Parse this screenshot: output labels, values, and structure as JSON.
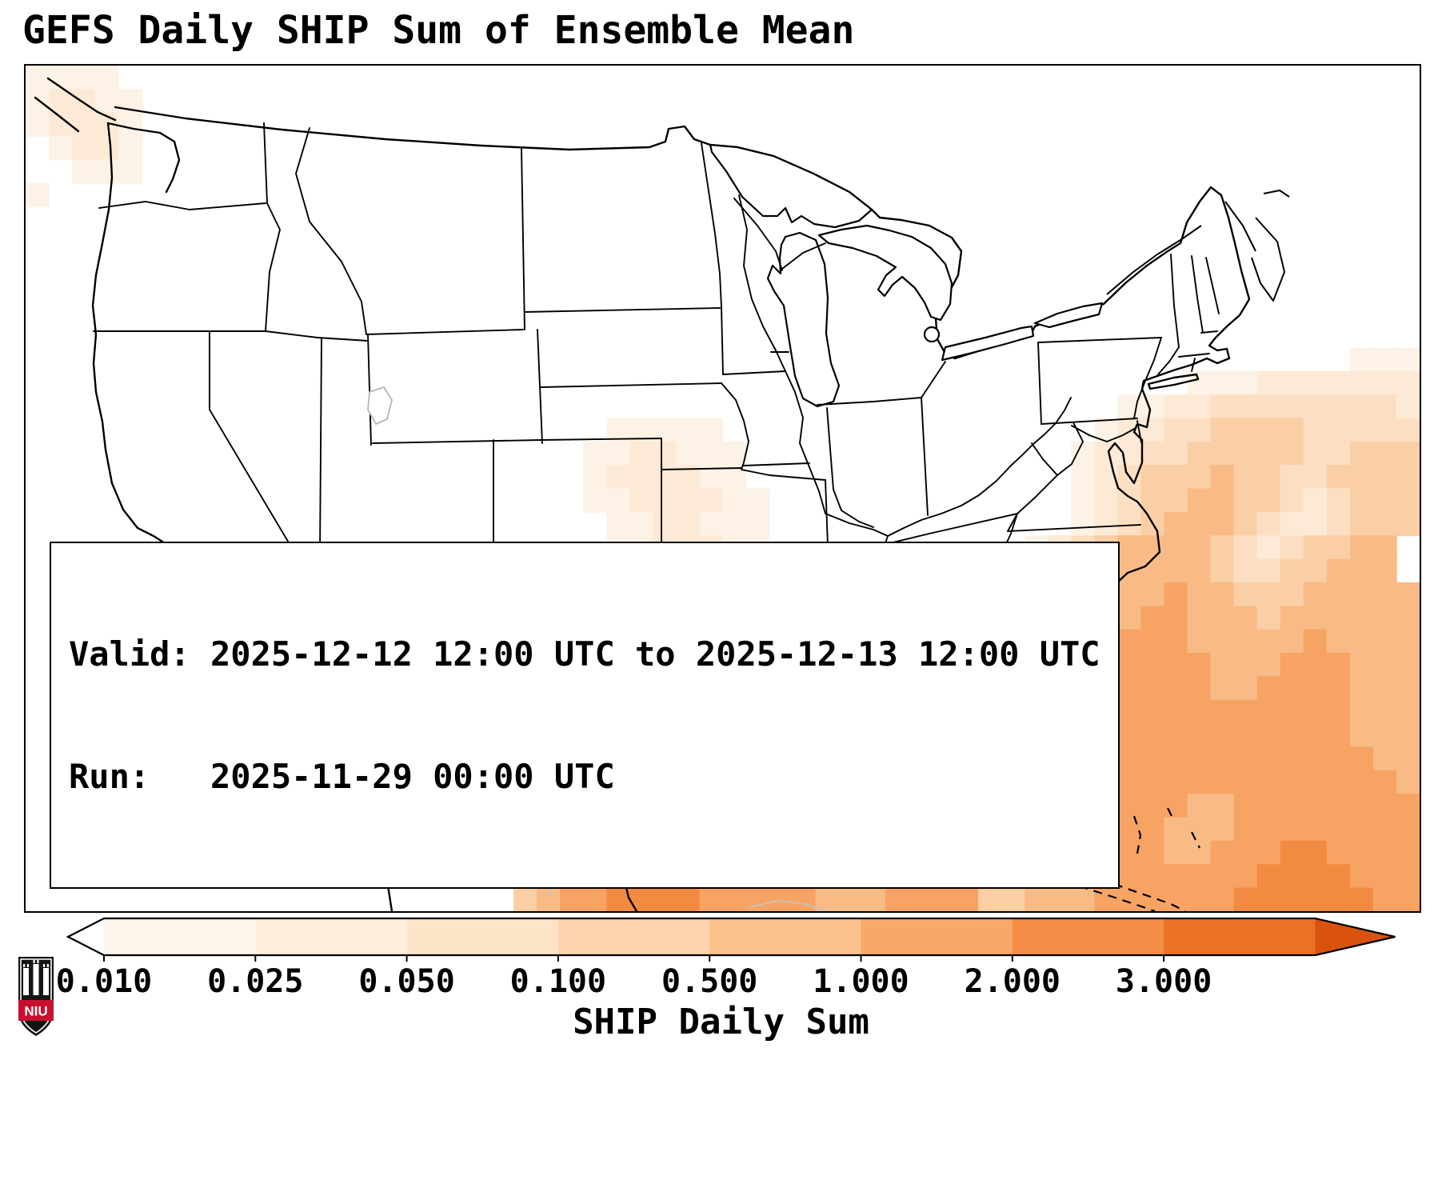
{
  "title": "GEFS Daily SHIP Sum of Ensemble Mean",
  "info_box": {
    "valid_line": "Valid: 2025-12-12 12:00 UTC to 2025-12-13 12:00 UTC",
    "run_line": "Run:   2025-11-29 00:00 UTC"
  },
  "logo": {
    "text": "NIU",
    "red": "#c8102e",
    "black": "#141414"
  },
  "chart_data": {
    "type": "heatmap",
    "title": "GEFS Daily SHIP Sum of Ensemble Mean",
    "colorbar_label": "SHIP Daily Sum",
    "colorbar_ticks": [
      "0.010",
      "0.025",
      "0.050",
      "0.100",
      "0.500",
      "1.000",
      "2.000",
      "3.000"
    ],
    "colorbar_colors": {
      "under": "#ffffff",
      "segments": [
        "#fef5eb",
        "#feeedd",
        "#fde4c9",
        "#fdd4ad",
        "#fbc18c",
        "#f8a868",
        "#f48d45",
        "#ea7224"
      ],
      "over": "#d9530e"
    },
    "valid": "2025-12-12 12:00 UTC to 2025-12-13 12:00 UTC",
    "run": "2025-11-29 00:00 UTC",
    "grid": {
      "cols": 60,
      "rows": 36,
      "palette": {
        "1": "#fdf2e6",
        "2": "#fdead6",
        "3": "#fcdfc2",
        "4": "#fbcfa6",
        "5": "#f9bb86",
        "6": "#f7a364",
        "7": "#f28b42"
      },
      "rows_data": [
        "1111........................................................",
        "12211.......................................................",
        "12221.......................................................",
        ".1221.......................................................",
        "..111.......................................................",
        "1...........................................................",
        "............................................................",
        "............................................................",
        "............................................................",
        "............................................................",
        "............................................................",
        "............................................................",
        ".........................................................111",
        "..................................................1112222222",
        "...............................................1122333333332",
        ".........................11111................12233444433333",
        "........................1122111..............122334444433444",
        "........................1222211..............123444544334444",
        "........................11222211.............123445544323444",
        ".........................1122111.............123455543223444",
        ".........................1122211...........1234555543234455",
        "........................112222111..........1234555543344555",
        ".......................11222222111.........12345565544455555",
        "......................112233222211.........12345665554555555",
        ".....................1122222111211........123456665555565555",
        ".....................12233322222111.......234556666555666555",
        ".....................223344332222222.....1234566666556666555",
        "....................1233444433333333222222345666666666666555",
        "....................1234455444444333332221123566666666666555",
        "....................1234555554444444333331123566666666666655",
        ".....................234556655554444443331123566666666666665",
        ".....................234566665555544444421223566665566666666",
        ".....................345667666555555444422224566655566666666",
        ".....................345677766655555555442245666655666776666",
        ".....................345677766665555555553355566666667777666",
        ".....................456677776666655566664455566666677777766"
      ]
    }
  }
}
